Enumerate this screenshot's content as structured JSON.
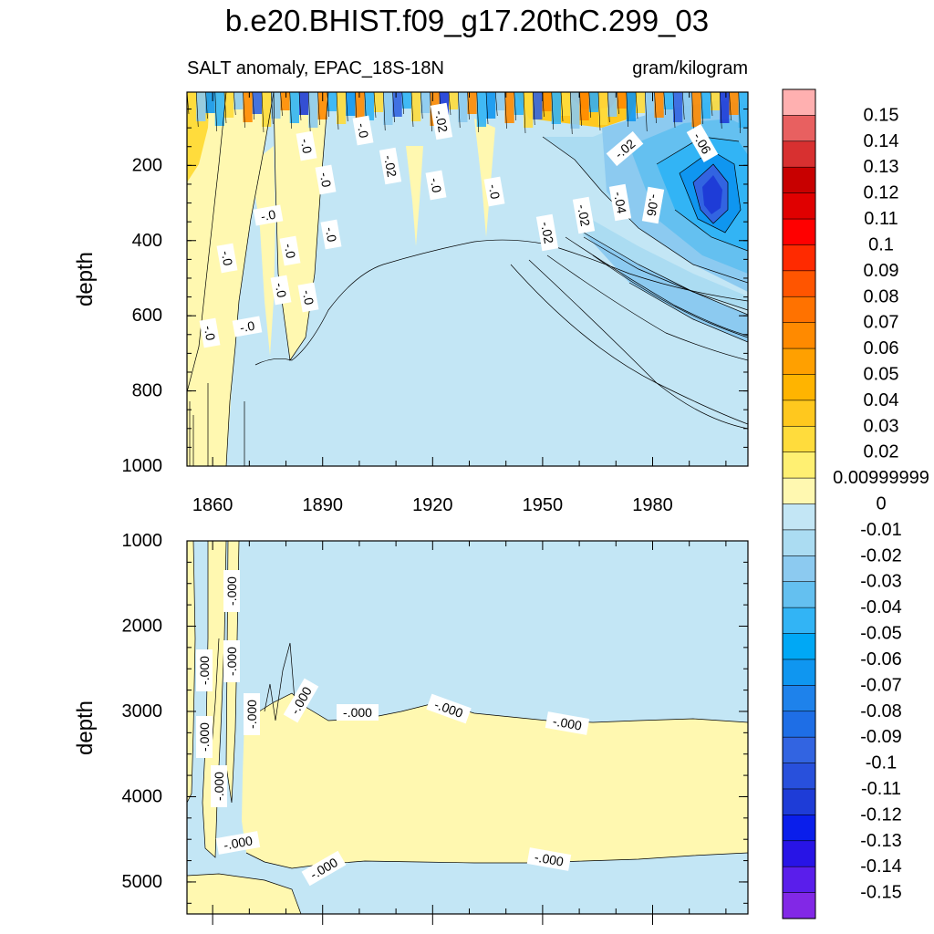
{
  "chart_data": {
    "type": "heatmap",
    "title": "b.e20.BHIST.f09_g17.20thC.299_03",
    "subtitle_left": "SALT anomaly, EPAC_18S-18N",
    "subtitle_right": "gram/kilogram",
    "xticks": [
      "1860",
      "1890",
      "1920",
      "1950",
      "1980"
    ],
    "x_range": [
      1853,
      2006
    ],
    "upper_panel": {
      "ylabel": "depth",
      "yticks": [
        "200",
        "400",
        "600",
        "800",
        "1000"
      ],
      "y_range": [
        5,
        1000
      ],
      "contour_labels": [
        "-.0",
        "-.0",
        "-.02",
        "-.02",
        "-.0",
        "-.0",
        "-.0",
        "-.02",
        "-.02",
        "-.04",
        "-.06",
        "-.06",
        "-.0",
        "-.0",
        "-.0",
        "-.0",
        "-.0",
        "-.02",
        "-.0",
        "-.0",
        "-.0"
      ]
    },
    "lower_panel": {
      "ylabel": "depth",
      "yticks": [
        "1000",
        "2000",
        "3000",
        "4000",
        "5000"
      ],
      "y_range": [
        1000,
        5375
      ],
      "contour_labels": [
        "-.000",
        "-.000",
        "-.000",
        "-.000",
        "-.000",
        "-.000",
        "-.000",
        "-.000",
        "-.000",
        "-.000",
        "-.000",
        "-.000",
        "-.000",
        "-.000"
      ]
    },
    "colorbar": {
      "labels": [
        "0.15",
        "0.14",
        "0.13",
        "0.12",
        "0.11",
        "0.1",
        "0.09",
        "0.08",
        "0.07",
        "0.06",
        "0.05",
        "0.04",
        "0.03",
        "0.02",
        "0.00999999",
        "0",
        "-0.01",
        "-0.02",
        "-0.03",
        "-0.04",
        "-0.05",
        "-0.06",
        "-0.07",
        "-0.08",
        "-0.09",
        "-0.1",
        "-0.11",
        "-0.12",
        "-0.13",
        "-0.14",
        "-0.15"
      ],
      "colors": [
        "#FFB0B0",
        "#E86060",
        "#D83030",
        "#C80000",
        "#E00000",
        "#FF0000",
        "#FF2A00",
        "#FF5500",
        "#FF7200",
        "#FF8A00",
        "#FFA000",
        "#FFB400",
        "#FFC81E",
        "#FFDC3C",
        "#FFF072",
        "#FFF8B0",
        "#C3E6F5",
        "#ABDCF2",
        "#8CCAF0",
        "#64C0F0",
        "#32B4F5",
        "#00A8F5",
        "#0F96F0",
        "#1E82EB",
        "#1E6EE6",
        "#3264E1",
        "#2850DC",
        "#1E3CD7",
        "#0A1EEB",
        "#2814E6",
        "#5A1EEB",
        "#8228E6"
      ]
    }
  }
}
